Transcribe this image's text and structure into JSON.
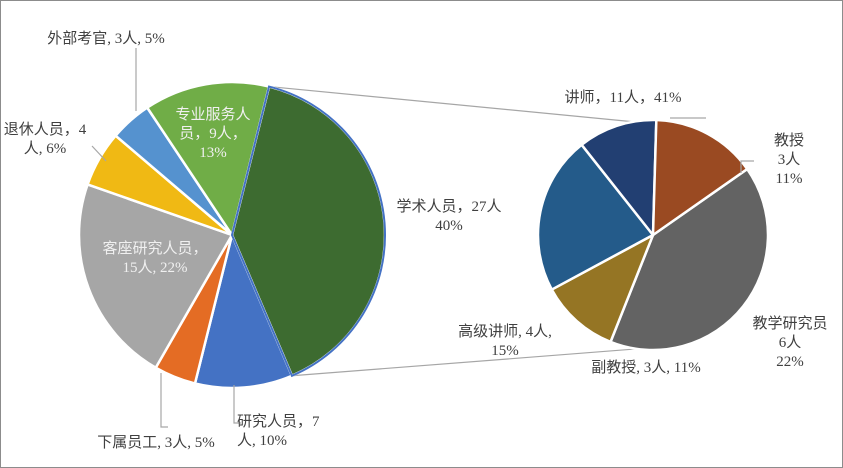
{
  "chart_data": {
    "type": "pie",
    "subtype": "pie-of-pie",
    "main_pie": {
      "slices": [
        {
          "name": "学术人员",
          "count": 27,
          "percent": 40,
          "color": "#3d6b30",
          "label_lines": [
            "学术人员，27人",
            "40%"
          ]
        },
        {
          "name": "研究人员",
          "count": 7,
          "percent": 10,
          "color": "#4472c4",
          "label_lines": [
            "研究人员，7",
            "人, 10%"
          ]
        },
        {
          "name": "下属员工",
          "count": 3,
          "percent": 5,
          "color": "#e46c24",
          "label_lines": [
            "下属员工, 3人, 5%"
          ]
        },
        {
          "name": "客座研究人员",
          "count": 15,
          "percent": 22,
          "color": "#a6a6a6",
          "label_lines": [
            "客座研究人员，",
            "15人, 22%"
          ]
        },
        {
          "name": "退休人员",
          "count": 4,
          "percent": 6,
          "color": "#f0b914",
          "label_lines": [
            "退休人员，4",
            "人, 6%"
          ]
        },
        {
          "name": "外部考官",
          "count": 3,
          "percent": 5,
          "color": "#5592cf",
          "label_lines": [
            "外部考官, 3人, 5%"
          ]
        },
        {
          "name": "专业服务人员",
          "count": 9,
          "percent": 13,
          "color": "#70ad47",
          "label_lines": [
            "专业服务人",
            "员，9人，",
            "13%"
          ]
        }
      ]
    },
    "secondary_pie": {
      "slices": [
        {
          "name": "讲师",
          "count": 11,
          "percent": 41,
          "color": "#636363",
          "label_lines": [
            "讲师，11人，41%"
          ]
        },
        {
          "name": "教授",
          "count": 3,
          "percent": 11,
          "color": "#957524",
          "label_lines": [
            "教授",
            "3人",
            "11%"
          ]
        },
        {
          "name": "教学研究员",
          "count": 6,
          "percent": 22,
          "color": "#245b8a",
          "label_lines": [
            "教学研究员",
            "6人",
            "22%"
          ]
        },
        {
          "name": "副教授",
          "count": 3,
          "percent": 11,
          "color": "#223f72",
          "label_lines": [
            "副教授, 3人, 11%"
          ]
        },
        {
          "name": "高级讲师",
          "count": 4,
          "percent": 15,
          "color": "#9a4a22",
          "label_lines": [
            "高级讲师, 4人,",
            "15%"
          ]
        }
      ]
    },
    "title": "",
    "legend": "none"
  }
}
